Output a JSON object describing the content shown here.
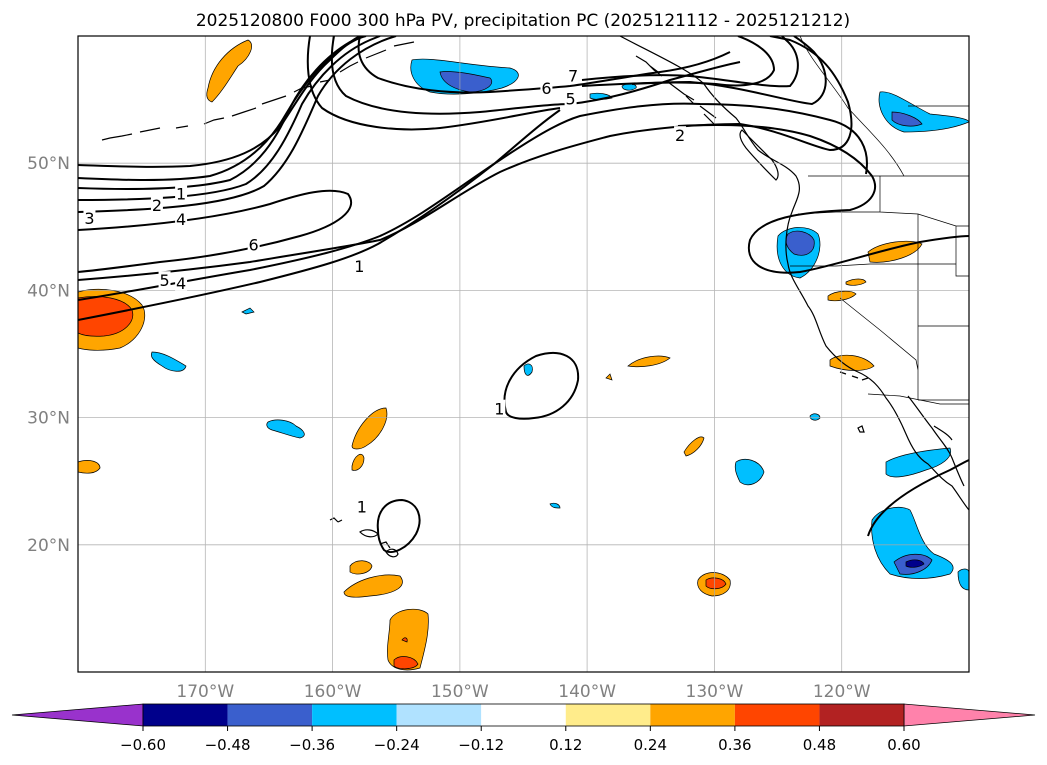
{
  "title": "2025120800 F000 300 hPa PV, precipitation PC (2025121112 - 2025121212)",
  "chart_data": {
    "type": "map",
    "projection": "cylindrical",
    "lon_range": [
      -180,
      -110
    ],
    "lat_range": [
      10,
      60
    ],
    "lat_ticks": [
      {
        "value": 20,
        "label": "20°N"
      },
      {
        "value": 30,
        "label": "30°N"
      },
      {
        "value": 40,
        "label": "40°N"
      },
      {
        "value": 50,
        "label": "50°N"
      }
    ],
    "lon_ticks": [
      {
        "value": -170,
        "label": "170°W"
      },
      {
        "value": -160,
        "label": "160°W"
      },
      {
        "value": -150,
        "label": "150°W"
      },
      {
        "value": -140,
        "label": "140°W"
      },
      {
        "value": -130,
        "label": "130°W"
      },
      {
        "value": -120,
        "label": "120°W"
      }
    ],
    "contour_field": "300 hPa PV",
    "contour_labels": [
      {
        "text": "1",
        "lon": -171.9,
        "lat": 47.6
      },
      {
        "text": "2",
        "lon": -173.8,
        "lat": 46.7
      },
      {
        "text": "3",
        "lon": -179.1,
        "lat": 45.7
      },
      {
        "text": "4",
        "lon": -171.9,
        "lat": 45.6
      },
      {
        "text": "6",
        "lon": -166.2,
        "lat": 43.6
      },
      {
        "text": "5",
        "lon": -173.2,
        "lat": 40.8
      },
      {
        "text": "4",
        "lon": -171.9,
        "lat": 40.6
      },
      {
        "text": "1",
        "lon": -157.9,
        "lat": 41.9
      },
      {
        "text": "7",
        "lon": -141.1,
        "lat": 56.9
      },
      {
        "text": "6",
        "lon": -143.2,
        "lat": 55.9
      },
      {
        "text": "5",
        "lon": -141.3,
        "lat": 55.1
      },
      {
        "text": "2",
        "lon": -132.7,
        "lat": 52.2
      },
      {
        "text": "1",
        "lon": -146.9,
        "lat": 30.7
      },
      {
        "text": "1",
        "lon": -157.7,
        "lat": 23.0
      }
    ],
    "shading_field": "precipitation PC",
    "colorbar": {
      "orientation": "horizontal",
      "extend": "both",
      "levels": [
        -0.6,
        -0.48,
        -0.36,
        -0.24,
        -0.12,
        0.12,
        0.24,
        0.36,
        0.48,
        0.6
      ],
      "tick_labels": [
        "−0.60",
        "−0.48",
        "−0.36",
        "−0.24",
        "−0.12",
        "0.12",
        "0.24",
        "0.36",
        "0.48",
        "0.60"
      ],
      "colors": [
        "#9932cc",
        "#00008b",
        "#3a5fcd",
        "#00bfff",
        "#b0e2ff",
        "#ffffff",
        "#ffec8b",
        "#ffa500",
        "#ff4500",
        "#b22222",
        "#ff82ab"
      ]
    },
    "colors": {
      "contour": "#000000",
      "coast": "#000000",
      "grid": "#a9a9a9",
      "tick_text": "#808080"
    }
  }
}
